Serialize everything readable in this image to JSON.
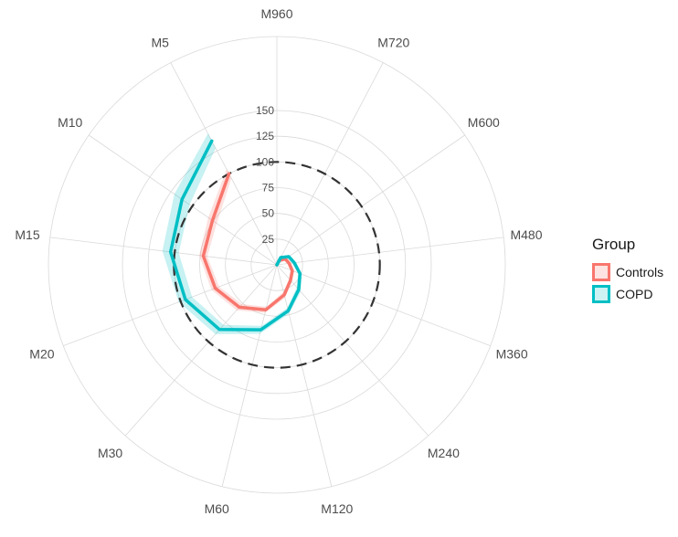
{
  "chart_data": {
    "type": "radar",
    "categories": [
      "M960",
      "M720",
      "M600",
      "M480",
      "M360",
      "M240",
      "M120",
      "M60",
      "M30",
      "M20",
      "M15",
      "M10",
      "M5"
    ],
    "r_ticks": [
      25,
      50,
      75,
      100,
      125,
      150
    ],
    "rlim": [
      0,
      150
    ],
    "reference_circle": 100,
    "grid": true,
    "legend_title": "Group",
    "legend_position": "right",
    "series": [
      {
        "name": "Controls",
        "color": "#F8766D",
        "values": [
          0,
          5,
          10,
          12,
          16,
          20,
          30,
          45,
          55,
          64,
          72,
          76,
          100
        ],
        "ci_low": [
          0,
          4,
          8,
          10,
          14,
          18,
          27,
          42,
          51,
          60,
          68,
          71,
          95
        ],
        "ci_high": [
          0,
          6,
          12,
          14,
          18,
          22,
          33,
          48,
          59,
          68,
          76,
          81,
          105
        ]
      },
      {
        "name": "COPD",
        "color": "#00BFC4",
        "values": [
          0,
          8,
          14,
          17,
          24,
          32,
          46,
          65,
          84,
          95,
          104,
          112,
          136
        ],
        "ci_low": [
          0,
          7,
          12,
          15,
          22,
          29,
          43,
          61,
          78,
          88,
          96,
          103,
          128
        ],
        "ci_high": [
          0,
          9,
          16,
          19,
          26,
          35,
          49,
          69,
          90,
          102,
          112,
          121,
          144
        ]
      }
    ]
  }
}
